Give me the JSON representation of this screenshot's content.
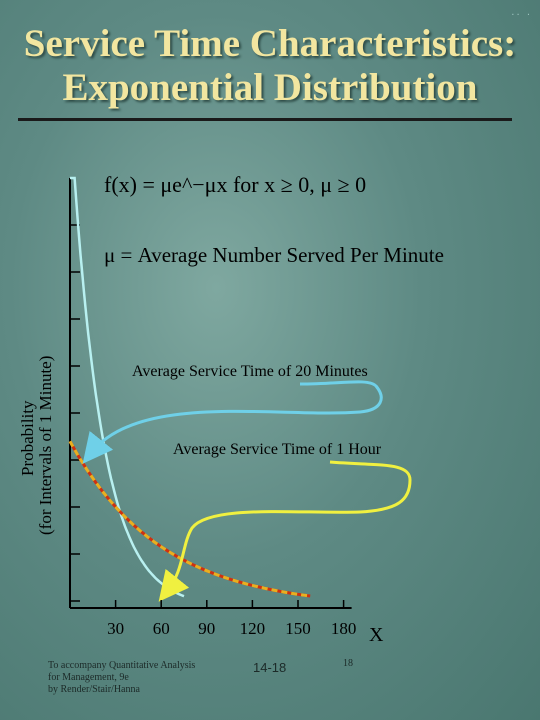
{
  "slide": {
    "title_line1": "Service Time Characteristics:",
    "title_line2": "Exponential Distribution",
    "footnote_line1": "To accompany Quantitative Analysis",
    "footnote_line2": "for Management, 9e",
    "footnote_line3": "by Render/Stair/Hanna",
    "slide_number": "14-18",
    "page_number": "18",
    "corner_decoration": "·· ·"
  },
  "chart_data": {
    "type": "line",
    "formula": "f(x) = μe^−μx  for  x ≥ 0, μ ≥ 0",
    "mu_definition": "μ = Average Number Served Per Minute",
    "ylabel_line1": "Probability",
    "ylabel_line2": "(for Intervals of 1 Minute)",
    "xlabel": "X",
    "x_ticks": [
      30,
      60,
      90,
      120,
      150,
      180
    ],
    "xlim": [
      0,
      180
    ],
    "ylim": [
      0,
      1
    ],
    "series": [
      {
        "mean": 20,
        "color": "#b8f0f0",
        "annotation": "Average Service Time of 20 Minutes",
        "arrow_color": "#6fd0e8"
      },
      {
        "mean": 60,
        "color": "#e8b020",
        "stroke2": "#d03010",
        "annotation": "Average Service Time of 1 Hour",
        "arrow_color": "#f0f040"
      }
    ]
  }
}
